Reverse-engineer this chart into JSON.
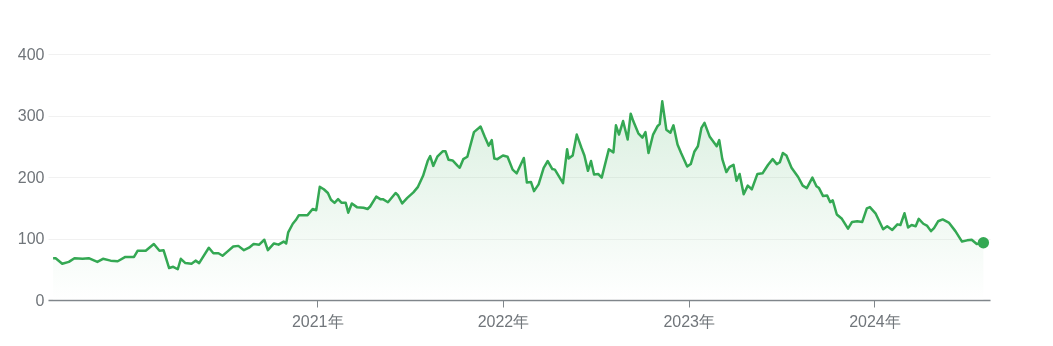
{
  "chart_data": {
    "type": "area",
    "grid": "y",
    "xlim": [
      "2019-07-22",
      "2024-08-15"
    ],
    "xticks": [
      {
        "value": "2021-01-01",
        "label": "2021年"
      },
      {
        "value": "2022-01-01",
        "label": "2022年"
      },
      {
        "value": "2023-01-01",
        "label": "2023年"
      },
      {
        "value": "2024-01-01",
        "label": "2024年"
      }
    ],
    "ylim": [
      0,
      400
    ],
    "yticks": [
      0,
      100,
      200,
      300,
      400
    ],
    "series": [
      {
        "type": "area",
        "color": "#34a853",
        "x": [
          "2019-08-01",
          "2019-08-06",
          "2019-08-19",
          "2019-09-01",
          "2019-09-12",
          "2019-09-28",
          "2019-10-10",
          "2019-10-27",
          "2019-11-07",
          "2019-11-22",
          "2019-12-06",
          "2019-12-21",
          "2020-01-07",
          "2020-01-14",
          "2020-01-30",
          "2020-02-15",
          "2020-02-26",
          "2020-03-05",
          "2020-03-16",
          "2020-03-24",
          "2020-04-02",
          "2020-04-08",
          "2020-04-17",
          "2020-04-29",
          "2020-05-07",
          "2020-05-14",
          "2020-06-02",
          "2020-06-11",
          "2020-06-21",
          "2020-06-29",
          "2020-07-09",
          "2020-07-20",
          "2020-07-30",
          "2020-08-10",
          "2020-08-20",
          "2020-08-29",
          "2020-09-09",
          "2020-09-19",
          "2020-09-26",
          "2020-10-08",
          "2020-10-17",
          "2020-10-27",
          "2020-11-01",
          "2020-11-05",
          "2020-11-14",
          "2020-11-20",
          "2020-11-26",
          "2020-12-13",
          "2020-12-23",
          "2020-12-30",
          "2021-01-06",
          "2021-01-14",
          "2021-01-22",
          "2021-01-28",
          "2021-02-04",
          "2021-02-11",
          "2021-02-18",
          "2021-02-26",
          "2021-03-03",
          "2021-03-10",
          "2021-03-20",
          "2021-04-02",
          "2021-04-10",
          "2021-04-15",
          "2021-04-27",
          "2021-05-05",
          "2021-05-10",
          "2021-05-20",
          "2021-06-04",
          "2021-06-09",
          "2021-06-17",
          "2021-06-27",
          "2021-07-09",
          "2021-07-18",
          "2021-07-28",
          "2021-08-06",
          "2021-08-11",
          "2021-08-17",
          "2021-08-25",
          "2021-09-05",
          "2021-09-10",
          "2021-09-16",
          "2021-09-24",
          "2021-10-04",
          "2021-10-08",
          "2021-10-15",
          "2021-10-23",
          "2021-11-05",
          "2021-11-18",
          "2021-11-26",
          "2021-12-04",
          "2021-12-10",
          "2021-12-15",
          "2021-12-21",
          "2022-01-01",
          "2022-01-10",
          "2022-01-20",
          "2022-01-28",
          "2022-02-11",
          "2022-02-17",
          "2022-02-25",
          "2022-03-03",
          "2022-03-12",
          "2022-03-22",
          "2022-03-30",
          "2022-04-08",
          "2022-04-13",
          "2022-04-29",
          "2022-05-07",
          "2022-05-10",
          "2022-05-18",
          "2022-05-26",
          "2022-06-04",
          "2022-06-10",
          "2022-06-17",
          "2022-06-23",
          "2022-06-29",
          "2022-07-07",
          "2022-07-14",
          "2022-07-28",
          "2022-08-06",
          "2022-08-11",
          "2022-08-17",
          "2022-08-25",
          "2022-09-03",
          "2022-09-09",
          "2022-09-14",
          "2022-09-24",
          "2022-10-02",
          "2022-10-08",
          "2022-10-14",
          "2022-10-23",
          "2022-11-01",
          "2022-11-05",
          "2022-11-10",
          "2022-11-18",
          "2022-11-26",
          "2022-12-02",
          "2022-12-10",
          "2022-12-17",
          "2022-12-29",
          "2023-01-05",
          "2023-01-12",
          "2023-01-19",
          "2023-01-26",
          "2023-02-01",
          "2023-02-11",
          "2023-02-25",
          "2023-03-02",
          "2023-03-08",
          "2023-03-16",
          "2023-03-22",
          "2023-03-30",
          "2023-04-05",
          "2023-04-11",
          "2023-04-19",
          "2023-04-27",
          "2023-05-05",
          "2023-05-16",
          "2023-05-26",
          "2023-06-06",
          "2023-06-15",
          "2023-06-23",
          "2023-06-29",
          "2023-07-05",
          "2023-07-12",
          "2023-07-22",
          "2023-08-04",
          "2023-08-13",
          "2023-08-21",
          "2023-09-01",
          "2023-09-09",
          "2023-09-14",
          "2023-09-22",
          "2023-09-30",
          "2023-10-06",
          "2023-10-11",
          "2023-10-19",
          "2023-10-29",
          "2023-11-10",
          "2023-11-18",
          "2023-11-28",
          "2023-12-08",
          "2023-12-17",
          "2023-12-23",
          "2024-01-03",
          "2024-01-18",
          "2024-01-26",
          "2024-02-05",
          "2024-02-15",
          "2024-02-21",
          "2024-02-29",
          "2024-03-07",
          "2024-03-14",
          "2024-03-22",
          "2024-03-28",
          "2024-04-06",
          "2024-04-13",
          "2024-04-21",
          "2024-04-27",
          "2024-05-05",
          "2024-05-14",
          "2024-05-26",
          "2024-06-08",
          "2024-06-21",
          "2024-07-01",
          "2024-07-10",
          "2024-07-20",
          "2024-08-02"
        ],
        "values": [
          68,
          68,
          59,
          62,
          68,
          67,
          68,
          62,
          67,
          64,
          63,
          70,
          70,
          80,
          80,
          91,
          80,
          81,
          52,
          54,
          50,
          67,
          60,
          59,
          64,
          60,
          85,
          76,
          76,
          72,
          79,
          87,
          88,
          81,
          85,
          91,
          90,
          98,
          81,
          92,
          90,
          95,
          92,
          110,
          124,
          130,
          138,
          138,
          148,
          146,
          184,
          180,
          174,
          163,
          158,
          164,
          158,
          158,
          142,
          157,
          151,
          150,
          148,
          152,
          168,
          164,
          164,
          159,
          174,
          170,
          157,
          166,
          175,
          184,
          202,
          226,
          234,
          218,
          233,
          242,
          242,
          228,
          227,
          218,
          215,
          229,
          233,
          273,
          282,
          266,
          251,
          260,
          230,
          229,
          235,
          233,
          212,
          206,
          231,
          191,
          192,
          177,
          188,
          215,
          226,
          213,
          212,
          190,
          245,
          230,
          235,
          269,
          248,
          235,
          210,
          226,
          204,
          205,
          199,
          245,
          240,
          284,
          269,
          291,
          261,
          303,
          291,
          271,
          264,
          273,
          239,
          269,
          283,
          286,
          323,
          277,
          272,
          284,
          253,
          239,
          217,
          221,
          241,
          250,
          280,
          288,
          266,
          250,
          260,
          229,
          208,
          216,
          220,
          194,
          205,
          172,
          186,
          180,
          205,
          206,
          220,
          229,
          221,
          224,
          239,
          235,
          215,
          200,
          186,
          182,
          199,
          185,
          182,
          169,
          170,
          159,
          162,
          139,
          132,
          116,
          127,
          128,
          127,
          149,
          151,
          141,
          115,
          120,
          114,
          123,
          122,
          141,
          118,
          122,
          120,
          132,
          124,
          121,
          112,
          117,
          128,
          131,
          126,
          112,
          95,
          97,
          98,
          91,
          93
        ]
      },
      {
        "type": "scatter",
        "color": "#34a853",
        "x": [
          "2024-08-02"
        ],
        "values": [
          93
        ]
      }
    ]
  }
}
